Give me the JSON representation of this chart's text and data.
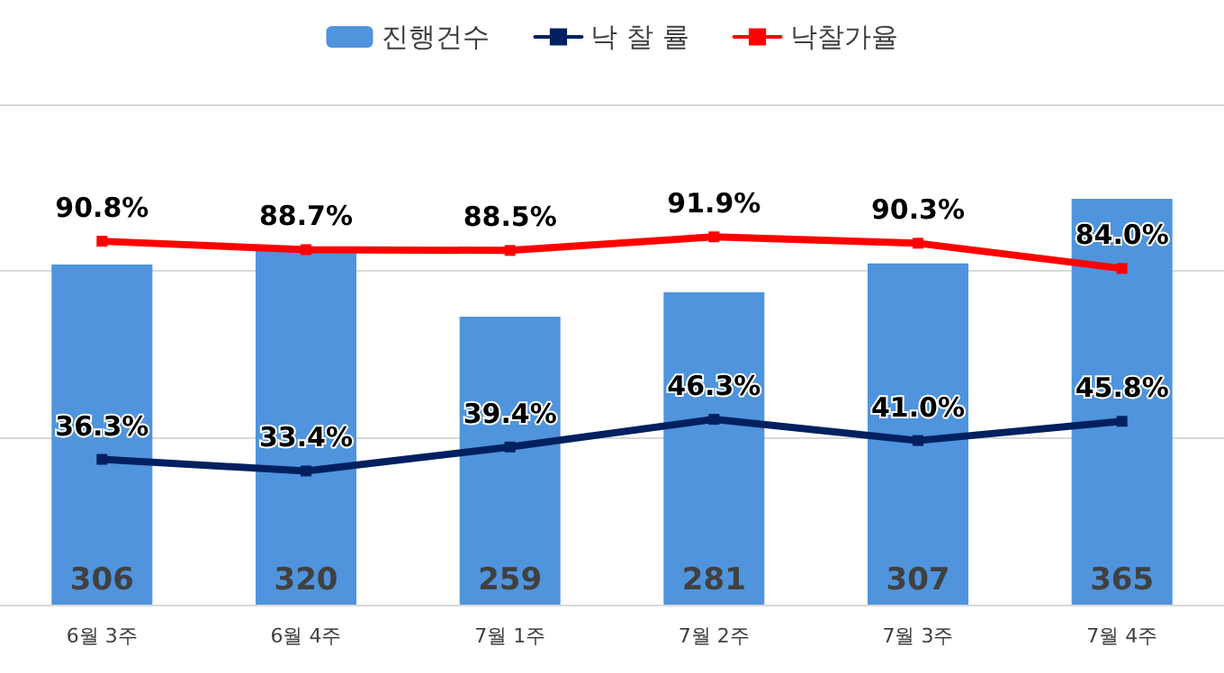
{
  "chart_data": {
    "type": "bar",
    "categories": [
      "6월 3주",
      "6월 4주",
      "7월 1주",
      "7월 2주",
      "7월 3주",
      "7월 4주"
    ],
    "series": [
      {
        "name": "진행건수",
        "color": "#4f94dc",
        "values": [
          306,
          320,
          259,
          281,
          307,
          365
        ],
        "value_labels": [
          "306",
          "320",
          "259",
          "281",
          "307",
          "365"
        ]
      },
      {
        "name": "낙 찰 률",
        "type": "line",
        "axis": "y2",
        "color": "#002060",
        "values": [
          36.3,
          33.4,
          39.4,
          46.3,
          41.0,
          45.8
        ],
        "value_labels": [
          "36.3%",
          "33.4%",
          "39.4%",
          "46.3%",
          "41.0%",
          "45.8%"
        ]
      },
      {
        "name": "낙찰가율",
        "type": "line",
        "axis": "y2",
        "color": "#ff0000",
        "values": [
          90.8,
          88.7,
          88.5,
          91.9,
          90.3,
          84.0
        ],
        "value_labels": [
          "90.8%",
          "88.7%",
          "88.5%",
          "91.9%",
          "90.3%",
          "84.0%"
        ]
      }
    ],
    "ylim": [
      0,
      450
    ],
    "yticks": [
      {
        "value": 0,
        "label": null
      },
      {
        "value": 150,
        "label": null
      },
      {
        "value": 300,
        "label": null
      },
      {
        "value": 450,
        "label": null
      }
    ],
    "y2lim": [
      0,
      125
    ],
    "tick_labels": "x",
    "grid": "y",
    "legend": "top",
    "marker": "square",
    "line_style": "solid"
  }
}
